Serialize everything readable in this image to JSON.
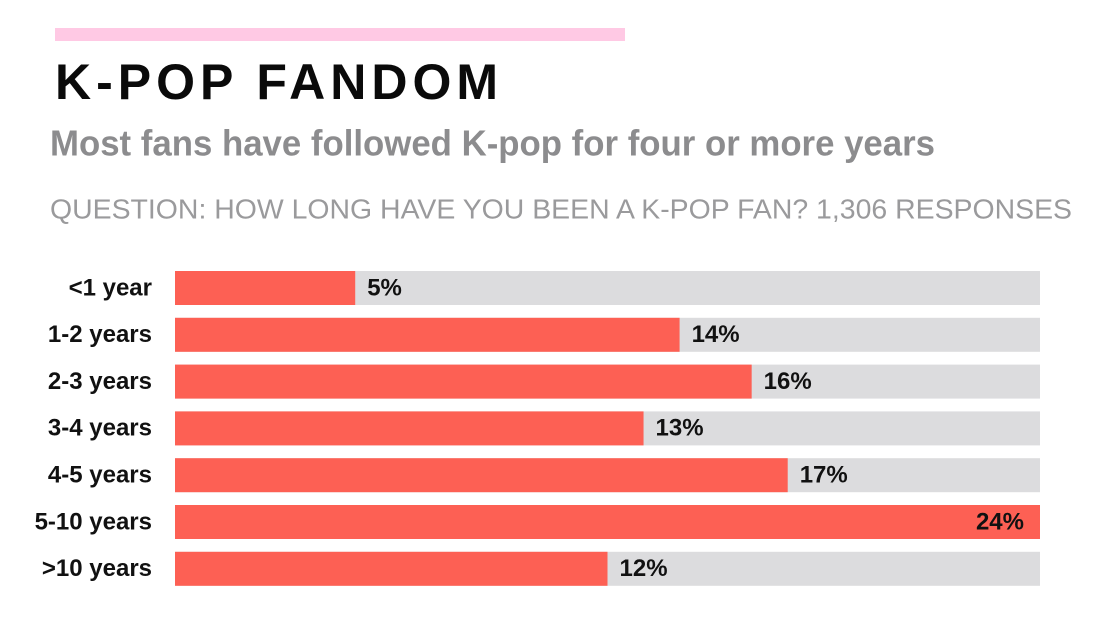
{
  "chart_data": {
    "type": "bar",
    "orientation": "horizontal",
    "title": "K-POP FANDOM",
    "subtitle": "Most fans have followed K-pop for four or more years",
    "question": "QUESTION: HOW LONG HAVE YOU BEEN A K-POP FAN? 1,306 RESPONSES",
    "categories": [
      "<1 year",
      "1-2 years",
      "2-3 years",
      "3-4 years",
      "4-5 years",
      "5-10 years",
      ">10 years"
    ],
    "values": [
      5,
      14,
      16,
      13,
      17,
      24,
      12
    ],
    "value_labels": [
      "5%",
      "14%",
      "16%",
      "13%",
      "17%",
      "24%",
      "12%"
    ],
    "color": "#fd6054",
    "track_color": "#dcdcde",
    "xlim": [
      0,
      24
    ]
  }
}
